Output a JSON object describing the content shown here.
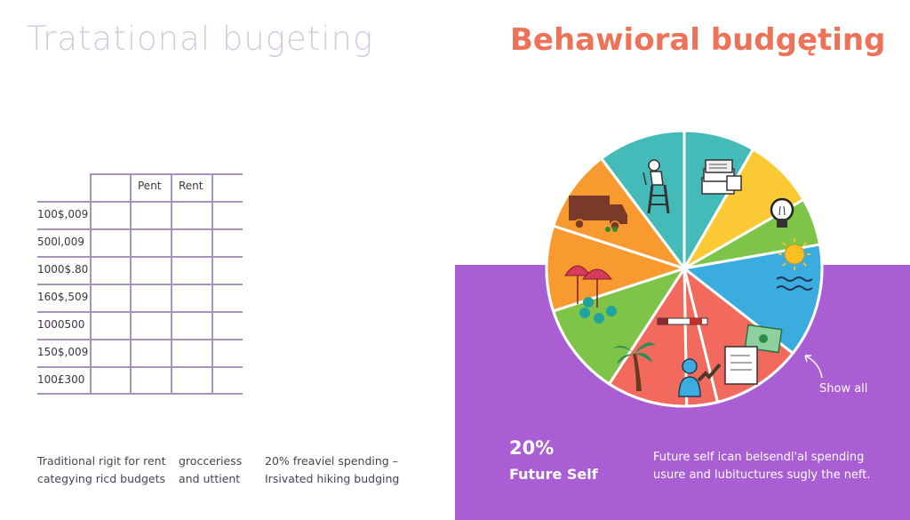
{
  "titles": {
    "left": "Tratational bugeting",
    "right": "Behawioral budgęting"
  },
  "traditional_table": {
    "column_headers": [
      "",
      "Pent",
      "Rent",
      ""
    ],
    "row_labels": [
      "100$,009",
      "500l,009",
      "1000$.80",
      "160$,509",
      "1000500",
      "150$,009",
      "100£300"
    ]
  },
  "traditional_notes": [
    {
      "line1": "Traditional rigit for rent",
      "line2": "categying ricd budgets"
    },
    {
      "line1": "grocceriess",
      "line2": "and uttient"
    },
    {
      "line1": "20% freaviel spending –",
      "line2": "Irsivated hiking budging"
    }
  ],
  "behavioral": {
    "show_all_label": "Show all",
    "stat_value": "20%",
    "stat_label": "Future Self",
    "description_line1": "Future self ican belsendl'al spending",
    "description_line2": "usure and lubituctures sugly the neft."
  },
  "colors": {
    "title_left": "#d6c9dd",
    "title_right": "#ec7358",
    "panel_purple": "#a95ed4",
    "grid_line": "#a893b8"
  },
  "chart_data": {
    "type": "pie",
    "title": "Behawioral budgęting",
    "slices": [
      {
        "name": "worker-ladder",
        "color": "#45bbb9",
        "start_deg": -90,
        "end_deg": -60,
        "icon": "person-on-ladder-icon"
      },
      {
        "name": "documents",
        "color": "#fbc933",
        "start_deg": -60,
        "end_deg": -30,
        "icon": "stacked-documents-icon"
      },
      {
        "name": "lightbulb",
        "color": "#7ec449",
        "start_deg": -30,
        "end_deg": -10,
        "icon": "lightbulb-icon"
      },
      {
        "name": "sun-water",
        "color": "#3aace0",
        "start_deg": -10,
        "end_deg": 38,
        "icon": "sun-waves-icon"
      },
      {
        "name": "money-document",
        "color": "#f26a5e",
        "start_deg": 38,
        "end_deg": 76,
        "icon": "money-document-icon"
      },
      {
        "name": "person-chart",
        "color": "#f26a5e",
        "start_deg": 76,
        "end_deg": 89,
        "icon": "person-chart-icon"
      },
      {
        "name": "pen",
        "color": "#f26a5e",
        "start_deg": 89,
        "end_deg": 123,
        "icon": "pen-icon"
      },
      {
        "name": "palm-trees",
        "color": "#7ec449",
        "start_deg": 123,
        "end_deg": 162,
        "icon": "palm-tree-icon"
      },
      {
        "name": "umbrellas",
        "color": "#f99a30",
        "start_deg": 162,
        "end_deg": 198,
        "icon": "umbrellas-icon"
      },
      {
        "name": "truck",
        "color": "#f99a30",
        "start_deg": 198,
        "end_deg": 233,
        "icon": "truck-icon"
      },
      {
        "name": "worker-ladder-b",
        "color": "#45bbb9",
        "start_deg": 233,
        "end_deg": 270,
        "icon": "person-on-ladder-icon"
      }
    ]
  }
}
